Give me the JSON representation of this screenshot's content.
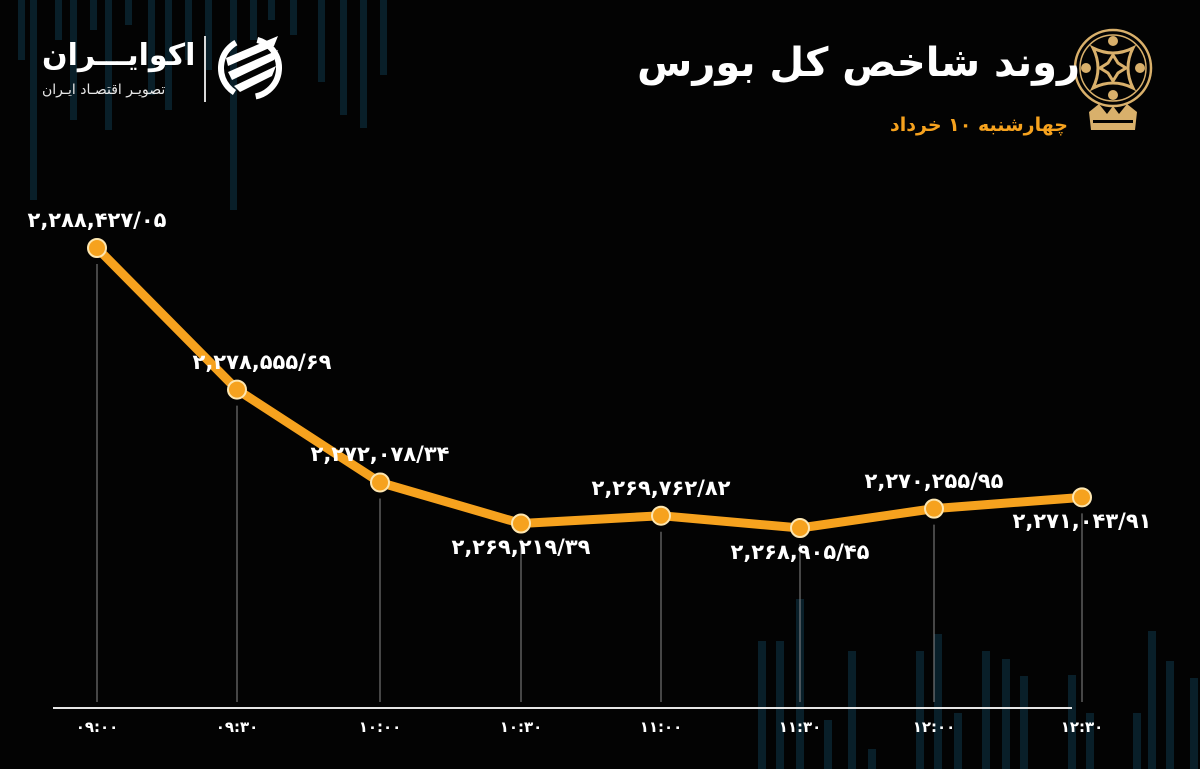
{
  "header": {
    "title": "روند شاخص کل بورس",
    "subtitle": "چهارشنبه ۱۰ خرداد",
    "exchange_logo": "tehran-stock-exchange-emblem-icon"
  },
  "brand": {
    "name": "اکوایـــران",
    "tagline": "تصویـر اقتصـاد ایـران",
    "logo": "ecoiran-swirl-logo-icon"
  },
  "colors": {
    "background": "#030303",
    "line": "#f6a21e",
    "marker_fill": "#f6a21e",
    "marker_stroke": "#fde6b0",
    "text": "#ffffff",
    "accent": "#f6a21e",
    "guide_lines": "#8a8a8a",
    "bg_bars": "#0b2530"
  },
  "chart_data": {
    "type": "line",
    "title": "روند شاخص کل بورس",
    "subtitle": "چهارشنبه ۱۰ خرداد",
    "xlabel": "",
    "ylabel": "",
    "grid": false,
    "legend": null,
    "categories": [
      "09:00",
      "09:30",
      "10:00",
      "10:30",
      "11:00",
      "11:30",
      "12:00",
      "12:30"
    ],
    "category_labels": [
      "۰۹:۰۰",
      "۰۹:۳۰",
      "۱۰:۰۰",
      "۱۰:۳۰",
      "۱۱:۰۰",
      "۱۱:۳۰",
      "۱۲:۰۰",
      "۱۲:۳۰"
    ],
    "series": [
      {
        "name": "شاخص کل بورس",
        "values": [
          2288427.05,
          2278555.69,
          2272078.34,
          2269219.39,
          2269762.82,
          2268905.45,
          2270255.95,
          2271043.91
        ],
        "data_labels": [
          "۲,۲۸۸,۴۲۷/۰۵",
          "۲,۲۷۸,۵۵۵/۶۹",
          "۲,۲۷۲,۰۷۸/۳۴",
          "۲,۲۶۹,۲۱۹/۳۹",
          "۲,۲۶۹,۷۶۲/۸۲",
          "۲,۲۶۸,۹۰۵/۴۵",
          "۲,۲۷۰,۲۵۵/۹۵",
          "۲,۲۷۱,۰۴۳/۹۱"
        ]
      }
    ],
    "label_positions": [
      "above",
      "above",
      "above",
      "below",
      "above",
      "below",
      "above",
      "below"
    ]
  }
}
